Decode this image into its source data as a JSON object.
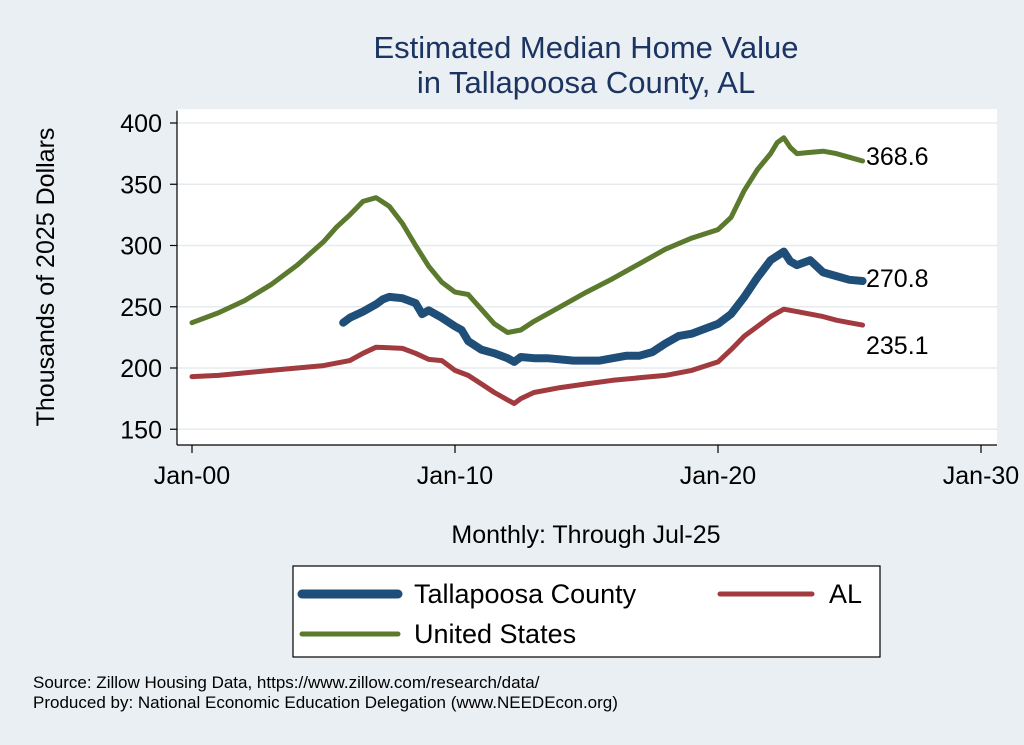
{
  "chart_data": {
    "type": "line",
    "title": [
      "Estimated Median Home Value",
      "in Tallapoosa County, AL"
    ],
    "xlabel": "Monthly: Through Jul-25",
    "ylabel": "Thousands of 2025 Dollars",
    "xlim": [
      2000,
      2030
    ],
    "ylim": [
      140,
      410
    ],
    "x_ticks": [
      {
        "value": 2000,
        "label": "Jan-00"
      },
      {
        "value": 2010,
        "label": "Jan-10"
      },
      {
        "value": 2020,
        "label": "Jan-20"
      },
      {
        "value": 2030,
        "label": "Jan-30"
      }
    ],
    "y_ticks": [
      150,
      200,
      250,
      300,
      350,
      400
    ],
    "grid": true,
    "legend_position": "bottom",
    "series": [
      {
        "name": "Tallapoosa County",
        "color": "#1f4e79",
        "end_label": "270.8",
        "points": [
          [
            2005.75,
            237
          ],
          [
            2006.0,
            241
          ],
          [
            2006.5,
            246
          ],
          [
            2007.0,
            252
          ],
          [
            2007.25,
            256
          ],
          [
            2007.5,
            258
          ],
          [
            2008.0,
            257
          ],
          [
            2008.5,
            253
          ],
          [
            2008.75,
            244
          ],
          [
            2009.0,
            247
          ],
          [
            2009.5,
            241
          ],
          [
            2010.0,
            234
          ],
          [
            2010.25,
            231
          ],
          [
            2010.5,
            222
          ],
          [
            2011.0,
            215
          ],
          [
            2011.5,
            212
          ],
          [
            2012.0,
            208
          ],
          [
            2012.25,
            205
          ],
          [
            2012.5,
            209
          ],
          [
            2013.0,
            208
          ],
          [
            2013.5,
            208
          ],
          [
            2014.0,
            207
          ],
          [
            2014.5,
            206
          ],
          [
            2015.0,
            206
          ],
          [
            2015.5,
            206
          ],
          [
            2016.0,
            208
          ],
          [
            2016.5,
            210
          ],
          [
            2017.0,
            210
          ],
          [
            2017.5,
            213
          ],
          [
            2018.0,
            220
          ],
          [
            2018.5,
            226
          ],
          [
            2019.0,
            228
          ],
          [
            2019.5,
            232
          ],
          [
            2020.0,
            236
          ],
          [
            2020.5,
            244
          ],
          [
            2021.0,
            258
          ],
          [
            2021.5,
            274
          ],
          [
            2022.0,
            288
          ],
          [
            2022.5,
            295
          ],
          [
            2022.75,
            287
          ],
          [
            2023.0,
            284
          ],
          [
            2023.5,
            288
          ],
          [
            2024.0,
            278
          ],
          [
            2024.5,
            275
          ],
          [
            2025.0,
            272
          ],
          [
            2025.5,
            271
          ]
        ]
      },
      {
        "name": "AL",
        "color": "#a23b3f",
        "end_label": "235.1",
        "points": [
          [
            2000.0,
            193
          ],
          [
            2001.0,
            194
          ],
          [
            2002.0,
            196
          ],
          [
            2003.0,
            198
          ],
          [
            2004.0,
            200
          ],
          [
            2005.0,
            202
          ],
          [
            2005.5,
            204
          ],
          [
            2006.0,
            206
          ],
          [
            2006.5,
            212
          ],
          [
            2007.0,
            217
          ],
          [
            2008.0,
            216
          ],
          [
            2008.5,
            212
          ],
          [
            2009.0,
            207
          ],
          [
            2009.5,
            206
          ],
          [
            2010.0,
            198
          ],
          [
            2010.5,
            194
          ],
          [
            2011.0,
            187
          ],
          [
            2011.5,
            180
          ],
          [
            2012.0,
            174
          ],
          [
            2012.25,
            171
          ],
          [
            2012.5,
            175
          ],
          [
            2013.0,
            180
          ],
          [
            2014.0,
            184
          ],
          [
            2015.0,
            187
          ],
          [
            2016.0,
            190
          ],
          [
            2017.0,
            192
          ],
          [
            2018.0,
            194
          ],
          [
            2019.0,
            198
          ],
          [
            2020.0,
            205
          ],
          [
            2020.5,
            215
          ],
          [
            2021.0,
            226
          ],
          [
            2021.5,
            234
          ],
          [
            2022.0,
            242
          ],
          [
            2022.5,
            248
          ],
          [
            2023.0,
            246
          ],
          [
            2023.5,
            244
          ],
          [
            2024.0,
            242
          ],
          [
            2024.5,
            239
          ],
          [
            2025.0,
            237
          ],
          [
            2025.5,
            235
          ]
        ]
      },
      {
        "name": "United States",
        "color": "#5b7a2e",
        "end_label": "368.6",
        "points": [
          [
            2000.0,
            237
          ],
          [
            2001.0,
            245
          ],
          [
            2002.0,
            255
          ],
          [
            2003.0,
            268
          ],
          [
            2004.0,
            284
          ],
          [
            2005.0,
            303
          ],
          [
            2005.5,
            315
          ],
          [
            2006.0,
            325
          ],
          [
            2006.5,
            336
          ],
          [
            2007.0,
            339
          ],
          [
            2007.5,
            332
          ],
          [
            2008.0,
            318
          ],
          [
            2008.5,
            300
          ],
          [
            2009.0,
            283
          ],
          [
            2009.5,
            270
          ],
          [
            2010.0,
            262
          ],
          [
            2010.5,
            260
          ],
          [
            2011.0,
            248
          ],
          [
            2011.5,
            236
          ],
          [
            2012.0,
            229
          ],
          [
            2012.5,
            231
          ],
          [
            2013.0,
            238
          ],
          [
            2014.0,
            250
          ],
          [
            2015.0,
            262
          ],
          [
            2016.0,
            273
          ],
          [
            2017.0,
            285
          ],
          [
            2018.0,
            297
          ],
          [
            2019.0,
            306
          ],
          [
            2020.0,
            313
          ],
          [
            2020.25,
            318
          ],
          [
            2020.5,
            323
          ],
          [
            2021.0,
            345
          ],
          [
            2021.5,
            362
          ],
          [
            2022.0,
            375
          ],
          [
            2022.25,
            384
          ],
          [
            2022.5,
            388
          ],
          [
            2022.75,
            380
          ],
          [
            2023.0,
            375
          ],
          [
            2023.5,
            376
          ],
          [
            2024.0,
            377
          ],
          [
            2024.5,
            375
          ],
          [
            2025.0,
            372
          ],
          [
            2025.5,
            369
          ]
        ]
      }
    ]
  },
  "legend": {
    "items": [
      "Tallapoosa County",
      "AL",
      "United States"
    ]
  },
  "footer": {
    "source": "Source: Zillow Housing Data, https://www.zillow.com/research/data/",
    "produced_by": "Produced by: National Economic Education Delegation (www.NEEDEcon.org)"
  },
  "colors": {
    "background": "#e9eff3",
    "plot_background": "#ffffff",
    "title": "#1c3461"
  }
}
